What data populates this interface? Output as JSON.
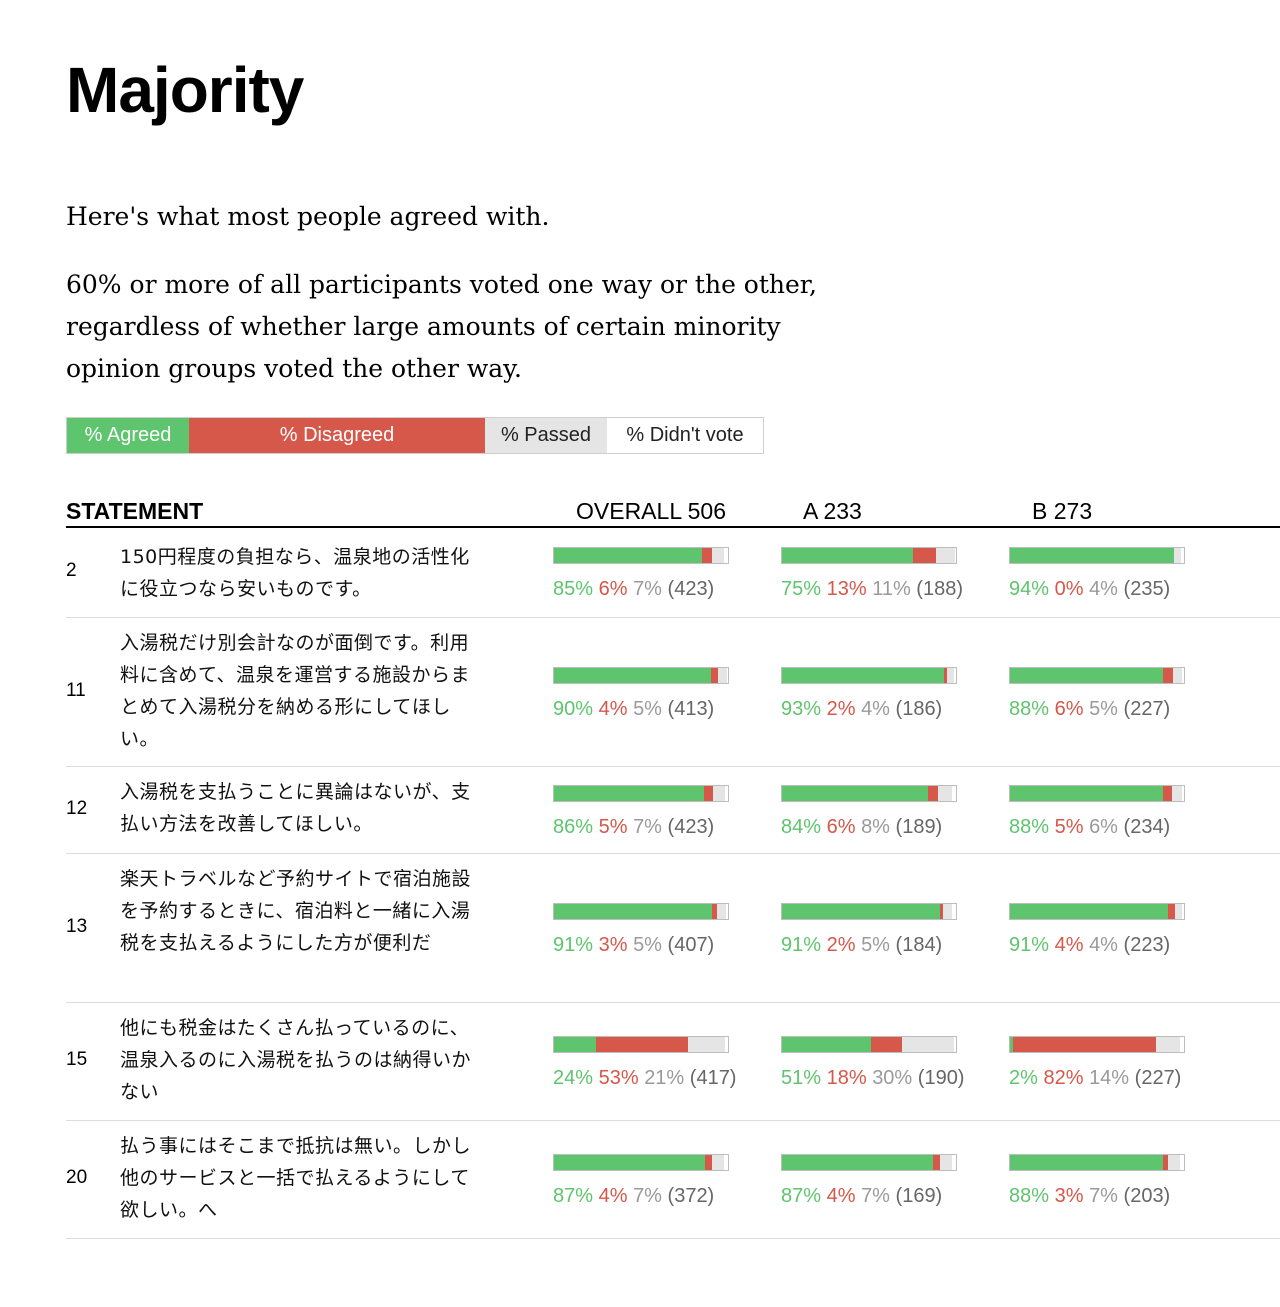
{
  "title": "Majority",
  "intro": "Here's what most people agreed with.",
  "description": "60% or more of all participants voted one way or the other, regardless of whether large amounts of certain minority opinion groups voted the other way.",
  "legend": {
    "agreed": "% Agreed",
    "disagreed": "% Disagreed",
    "passed": "% Passed",
    "didnt_vote": "% Didn't vote"
  },
  "colors": {
    "agreed": "#5fc46e",
    "disagreed": "#d5584a",
    "passed": "#e5e5e5"
  },
  "table": {
    "statement_header": "STATEMENT",
    "groups": [
      {
        "label": "OVERALL 506"
      },
      {
        "label": "A 233"
      },
      {
        "label": "B 273"
      }
    ]
  },
  "rows": [
    {
      "num": "2",
      "text": "150円程度の負担なら、温泉地の活性化に役立つなら安いものです。",
      "groups": [
        {
          "agree": 85,
          "disagree": 6,
          "pass": 7,
          "count": 423
        },
        {
          "agree": 75,
          "disagree": 13,
          "pass": 11,
          "count": 188
        },
        {
          "agree": 94,
          "disagree": 0,
          "pass": 4,
          "count": 235
        }
      ]
    },
    {
      "num": "11",
      "text": "入湯税だけ別会計なのが面倒です。利用料に含めて、温泉を運営する施設からまとめて入湯税分を納める形にしてほしい。",
      "groups": [
        {
          "agree": 90,
          "disagree": 4,
          "pass": 5,
          "count": 413
        },
        {
          "agree": 93,
          "disagree": 2,
          "pass": 4,
          "count": 186
        },
        {
          "agree": 88,
          "disagree": 6,
          "pass": 5,
          "count": 227
        }
      ]
    },
    {
      "num": "12",
      "text": "入湯税を支払うことに異論はないが、支払い方法を改善してほしい。",
      "groups": [
        {
          "agree": 86,
          "disagree": 5,
          "pass": 7,
          "count": 423
        },
        {
          "agree": 84,
          "disagree": 6,
          "pass": 8,
          "count": 189
        },
        {
          "agree": 88,
          "disagree": 5,
          "pass": 6,
          "count": 234
        }
      ]
    },
    {
      "num": "13",
      "text": "楽天トラベルなど予約サイトで宿泊施設を予約するときに、宿泊料と一緒に入湯税を支払えるようにした方が便利だ",
      "groups": [
        {
          "agree": 91,
          "disagree": 3,
          "pass": 5,
          "count": 407
        },
        {
          "agree": 91,
          "disagree": 2,
          "pass": 5,
          "count": 184
        },
        {
          "agree": 91,
          "disagree": 4,
          "pass": 4,
          "count": 223
        }
      ]
    },
    {
      "num": "15",
      "text": "他にも税金はたくさん払っているのに、温泉入るのに入湯税を払うのは納得いかない",
      "groups": [
        {
          "agree": 24,
          "disagree": 53,
          "pass": 21,
          "count": 417
        },
        {
          "agree": 51,
          "disagree": 18,
          "pass": 30,
          "count": 190
        },
        {
          "agree": 2,
          "disagree": 82,
          "pass": 14,
          "count": 227
        }
      ]
    },
    {
      "num": "20",
      "text": "払う事にはそこまで抵抗は無い。しかし他のサービスと一括で払えるようにして欲しい。へ",
      "groups": [
        {
          "agree": 87,
          "disagree": 4,
          "pass": 7,
          "count": 372
        },
        {
          "agree": 87,
          "disagree": 4,
          "pass": 7,
          "count": 169
        },
        {
          "agree": 88,
          "disagree": 3,
          "pass": 7,
          "count": 203
        }
      ]
    }
  ]
}
